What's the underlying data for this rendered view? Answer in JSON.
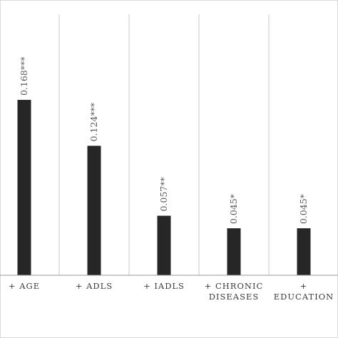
{
  "chart_data": {
    "type": "bar",
    "title": "",
    "xlabel": "",
    "ylabel": "",
    "categories": [
      [
        "+ AGE"
      ],
      [
        "+ ADLS"
      ],
      [
        "+ IADLS"
      ],
      [
        "+ CHRONIC",
        "DISEASES"
      ],
      [
        "+",
        "EDUCATION"
      ]
    ],
    "values": [
      0.168,
      0.124,
      0.057,
      0.045,
      0.045
    ],
    "value_labels": [
      "0.168***",
      "0.124***",
      "0.057**",
      "0.045*",
      "0.045*"
    ],
    "ylim": [
      0,
      0.25
    ],
    "grid": "vertical category separators",
    "colors": {
      "bar": "#262626",
      "label": "#5a5a5a"
    }
  }
}
